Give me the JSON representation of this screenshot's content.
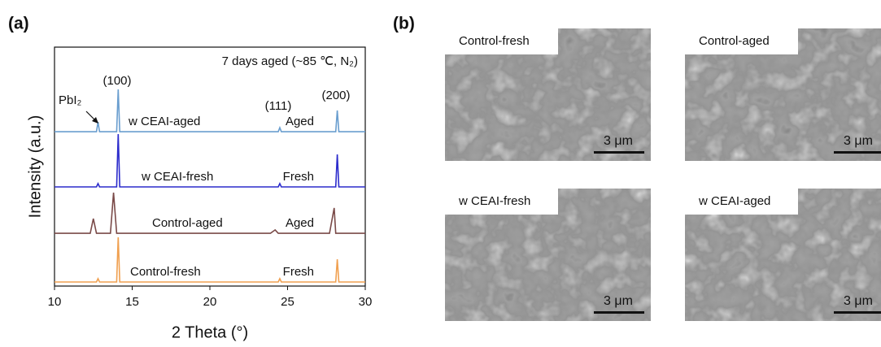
{
  "panel_labels": [
    "(a)",
    "(b)"
  ],
  "chart_data": {
    "type": "line",
    "subtitle": "7 days aged (~85 ℃, N₂)",
    "xlabel": "2 Theta (°)",
    "ylabel": "Intensity (a.u.)",
    "annotations": [
      "(100)",
      "(111)",
      "(200)",
      "PbI₂"
    ],
    "x": [
      10,
      12.3,
      12.5,
      12.7,
      12.8,
      12.9,
      13.1,
      13.6,
      13.8,
      14.0,
      14.1,
      14.2,
      14.4,
      23.9,
      24.2,
      24.4,
      24.5,
      24.6,
      24.8,
      27.7,
      28.0,
      28.1,
      28.2,
      28.3,
      28.5,
      30
    ],
    "xlim": [
      10,
      30
    ],
    "xticks": [
      10,
      15,
      20,
      25,
      30
    ],
    "ylim": [
      0,
      100
    ],
    "series": [
      {
        "name": "w CEAI-aged",
        "status": "Aged",
        "color": "#6a9ecf",
        "values": [
          64.6,
          64.6,
          64.6,
          64.6,
          68.7,
          64.6,
          64.6,
          64.6,
          64.6,
          64.6,
          82.3,
          64.6,
          64.6,
          64.6,
          64.6,
          64.6,
          66.3,
          64.6,
          64.6,
          64.6,
          64.6,
          64.6,
          73.5,
          64.6,
          64.6,
          64.6
        ]
      },
      {
        "name": "w CEAI-fresh",
        "status": "Fresh",
        "color": "#2c2ccc",
        "values": [
          41.5,
          41.5,
          41.5,
          41.5,
          42.9,
          41.5,
          41.5,
          41.5,
          41.5,
          41.5,
          63.6,
          41.5,
          41.5,
          41.5,
          41.5,
          41.5,
          42.9,
          41.5,
          41.5,
          41.5,
          41.5,
          41.5,
          55.1,
          41.5,
          41.5,
          41.5
        ]
      },
      {
        "name": "Control-aged",
        "status": "Aged",
        "color": "#7a4a48",
        "values": [
          22.1,
          22.1,
          28.2,
          22.1,
          22.1,
          22.1,
          22.1,
          22.1,
          39.1,
          22.1,
          22.1,
          22.1,
          22.1,
          22.1,
          23.5,
          22.1,
          22.1,
          22.1,
          22.1,
          22.1,
          32.7,
          22.1,
          22.1,
          22.1,
          22.1,
          22.1
        ]
      },
      {
        "name": "Control-fresh",
        "status": "Fresh",
        "color": "#f0a050",
        "values": [
          1.7,
          1.7,
          1.7,
          1.7,
          3.1,
          1.7,
          1.7,
          1.7,
          1.7,
          1.7,
          20.4,
          1.7,
          1.7,
          1.7,
          1.7,
          1.7,
          3.1,
          1.7,
          1.7,
          1.7,
          1.7,
          1.7,
          11.2,
          1.7,
          1.7,
          1.7
        ]
      }
    ]
  },
  "sem_images": [
    {
      "label": "Control-fresh",
      "scale_bar": "3 μm"
    },
    {
      "label": "Control-aged",
      "scale_bar": "3 μm"
    },
    {
      "label": "w CEAI-fresh",
      "scale_bar": "3 μm"
    },
    {
      "label": "w CEAI-aged",
      "scale_bar": "3 μm"
    }
  ]
}
